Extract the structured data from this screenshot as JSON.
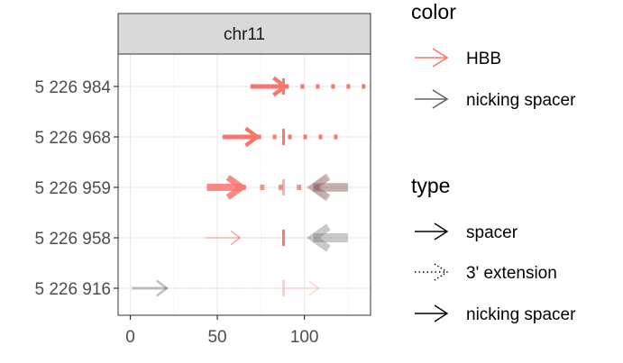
{
  "chart_data": {
    "type": "scatter",
    "title": "",
    "xlabel": "",
    "ylabel": "",
    "facet": "chr11",
    "xlim": [
      -7,
      138
    ],
    "xticks": [
      0,
      50,
      100
    ],
    "categories": [
      "5 226 984",
      "5 226 968",
      "5 226 959",
      "5 226 958",
      "5 226 916"
    ],
    "grid": true,
    "cut_position": 88,
    "segments": [
      {
        "row": "5 226 984",
        "type": "spacer",
        "color": "HBB",
        "x_start": 69,
        "x_end": 89,
        "direction": "right",
        "width": 5,
        "alpha": 1.0
      },
      {
        "row": "5 226 984",
        "type": "3' extension",
        "color": "HBB",
        "x_start": 89,
        "x_end": 135,
        "direction": "none",
        "width": 5,
        "alpha": 1.0
      },
      {
        "row": "5 226 968",
        "type": "spacer",
        "color": "HBB",
        "x_start": 53,
        "x_end": 73,
        "direction": "right",
        "width": 5,
        "alpha": 1.0
      },
      {
        "row": "5 226 968",
        "type": "3' extension",
        "color": "HBB",
        "x_start": 73,
        "x_end": 119,
        "direction": "none",
        "width": 5,
        "alpha": 1.0
      },
      {
        "row": "5 226 959",
        "type": "spacer",
        "color": "HBB",
        "x_start": 44,
        "x_end": 64,
        "direction": "right",
        "width": 8,
        "alpha": 0.85
      },
      {
        "row": "5 226 959",
        "type": "3' extension",
        "color": "HBB",
        "x_start": 64,
        "x_end": 110,
        "direction": "none",
        "width": 6,
        "alpha": 0.8
      },
      {
        "row": "5 226 959",
        "type": "nicking spacer",
        "color": "HBB",
        "x_start": 125,
        "x_end": 105,
        "direction": "left",
        "width": 8,
        "alpha": 0.3
      },
      {
        "row": "5 226 959",
        "type": "nicking spacer",
        "color": "nicking spacer",
        "x_start": 125,
        "x_end": 105,
        "direction": "left",
        "width": 10,
        "alpha": 0.35
      },
      {
        "row": "5 226 958",
        "type": "spacer",
        "color": "HBB",
        "x_start": 43,
        "x_end": 63,
        "direction": "right",
        "width": 1,
        "alpha": 0.8
      },
      {
        "row": "5 226 958",
        "type": "3' extension",
        "color": "HBB",
        "x_start": 63,
        "x_end": 109,
        "direction": "none",
        "width": 1,
        "alpha": 0.6
      },
      {
        "row": "5 226 958",
        "type": "nicking spacer",
        "color": "nicking spacer",
        "x_start": 125,
        "x_end": 105,
        "direction": "left",
        "width": 10,
        "alpha": 0.35
      },
      {
        "row": "5 226 916",
        "type": "spacer",
        "color": "nicking spacer",
        "x_start": 1,
        "x_end": 21,
        "direction": "right",
        "width": 3,
        "alpha": 0.4
      },
      {
        "row": "5 226 916",
        "type": "3' extension",
        "color": "nicking spacer",
        "x_start": 21,
        "x_end": 88,
        "direction": "none",
        "width": 1,
        "alpha": 0.25
      },
      {
        "row": "5 226 916",
        "type": "nicking spacer",
        "color": "HBB",
        "x_start": 88,
        "x_end": 108,
        "direction": "right",
        "width": 1,
        "alpha": 0.35
      }
    ],
    "cut_marks": [
      {
        "row": "5 226 984",
        "alpha": 1.0
      },
      {
        "row": "5 226 968",
        "alpha": 1.0
      },
      {
        "row": "5 226 959",
        "alpha": 0.6
      },
      {
        "row": "5 226 958",
        "alpha": 1.0
      },
      {
        "row": "5 226 916",
        "alpha": 0.35
      }
    ],
    "legend": {
      "placement": "right",
      "groups": [
        {
          "title": "color",
          "entries": [
            {
              "label": "HBB",
              "color": "#F8766D"
            },
            {
              "label": "nicking spacer",
              "color": "#636363"
            }
          ]
        },
        {
          "title": "type",
          "entries": [
            {
              "label": "spacer",
              "style": "solid"
            },
            {
              "label": "3' extension",
              "style": "dotted"
            },
            {
              "label": "nicking spacer",
              "style": "solid"
            }
          ]
        }
      ]
    }
  },
  "colors": {
    "HBB": "#F8766D",
    "nicking spacer": "#636363",
    "strip_fill": "#D9D9D9",
    "grid_major": "#EBEBEB",
    "grid_minor": "#F5F5F5",
    "axis_text": "#4D4D4D"
  }
}
